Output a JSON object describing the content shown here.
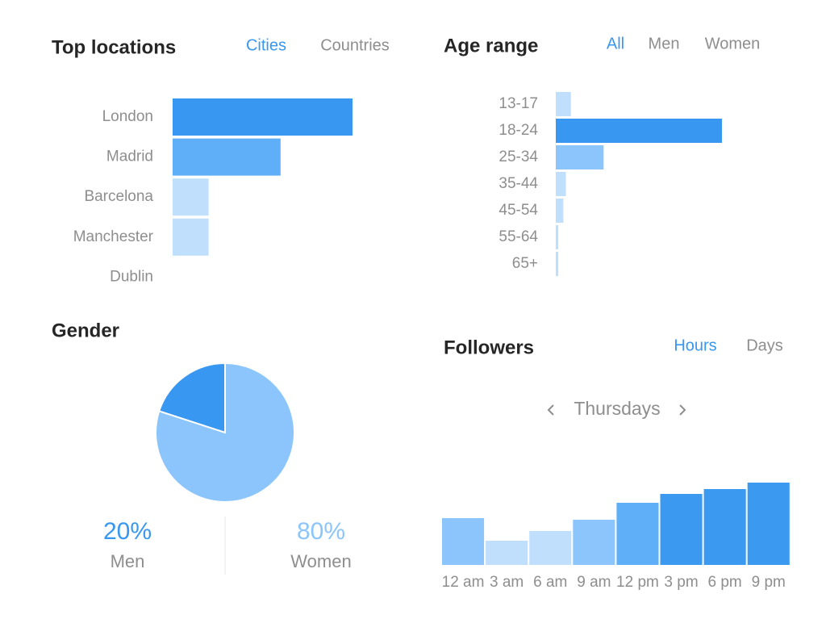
{
  "chart_data": [
    {
      "type": "hbar",
      "title": "Top locations",
      "tabs": [
        "Cities",
        "Countries"
      ],
      "active_tab": 0,
      "categories": [
        "London",
        "Madrid",
        "Barcelona",
        "Manchester",
        "Dublin"
      ],
      "values": [
        100,
        60,
        20,
        20,
        0
      ],
      "colors": [
        "#3897f0",
        "#5eaff8",
        "#bfdffd",
        "#bfdffd",
        "#bfdffd"
      ]
    },
    {
      "type": "hbar",
      "title": "Age range",
      "tabs": [
        "All",
        "Men",
        "Women"
      ],
      "active_tab": 0,
      "categories": [
        "13-17",
        "18-24",
        "25-34",
        "35-44",
        "45-54",
        "55-64",
        "65+"
      ],
      "values": [
        6,
        66,
        19,
        4,
        3,
        1,
        1
      ],
      "colors": [
        "#bfdffd",
        "#3897f0",
        "#8cc5fb",
        "#bfdffd",
        "#bfdffd",
        "#bfdffd",
        "#bfdffd"
      ]
    },
    {
      "type": "pie",
      "title": "Gender",
      "categories": [
        "Men",
        "Women"
      ],
      "values": [
        20,
        80
      ],
      "value_labels": [
        "20%",
        "80%"
      ],
      "colors": [
        "#3897f0",
        "#8cc5fb"
      ]
    },
    {
      "type": "bar",
      "title": "Followers",
      "tabs": [
        "Hours",
        "Days"
      ],
      "active_tab": 0,
      "subtitle": "Thursdays",
      "categories": [
        "12 am",
        "3 am",
        "6 am",
        "9 am",
        "12 pm",
        "3 pm",
        "6 pm",
        "9 pm"
      ],
      "values": [
        58,
        30,
        42,
        56,
        77,
        88,
        94,
        102
      ],
      "colors": [
        "#8cc5fb",
        "#bfdffd",
        "#bfdffd",
        "#8cc5fb",
        "#5eaff8",
        "#3b99f0",
        "#3b99f0",
        "#3b99f0"
      ]
    }
  ]
}
